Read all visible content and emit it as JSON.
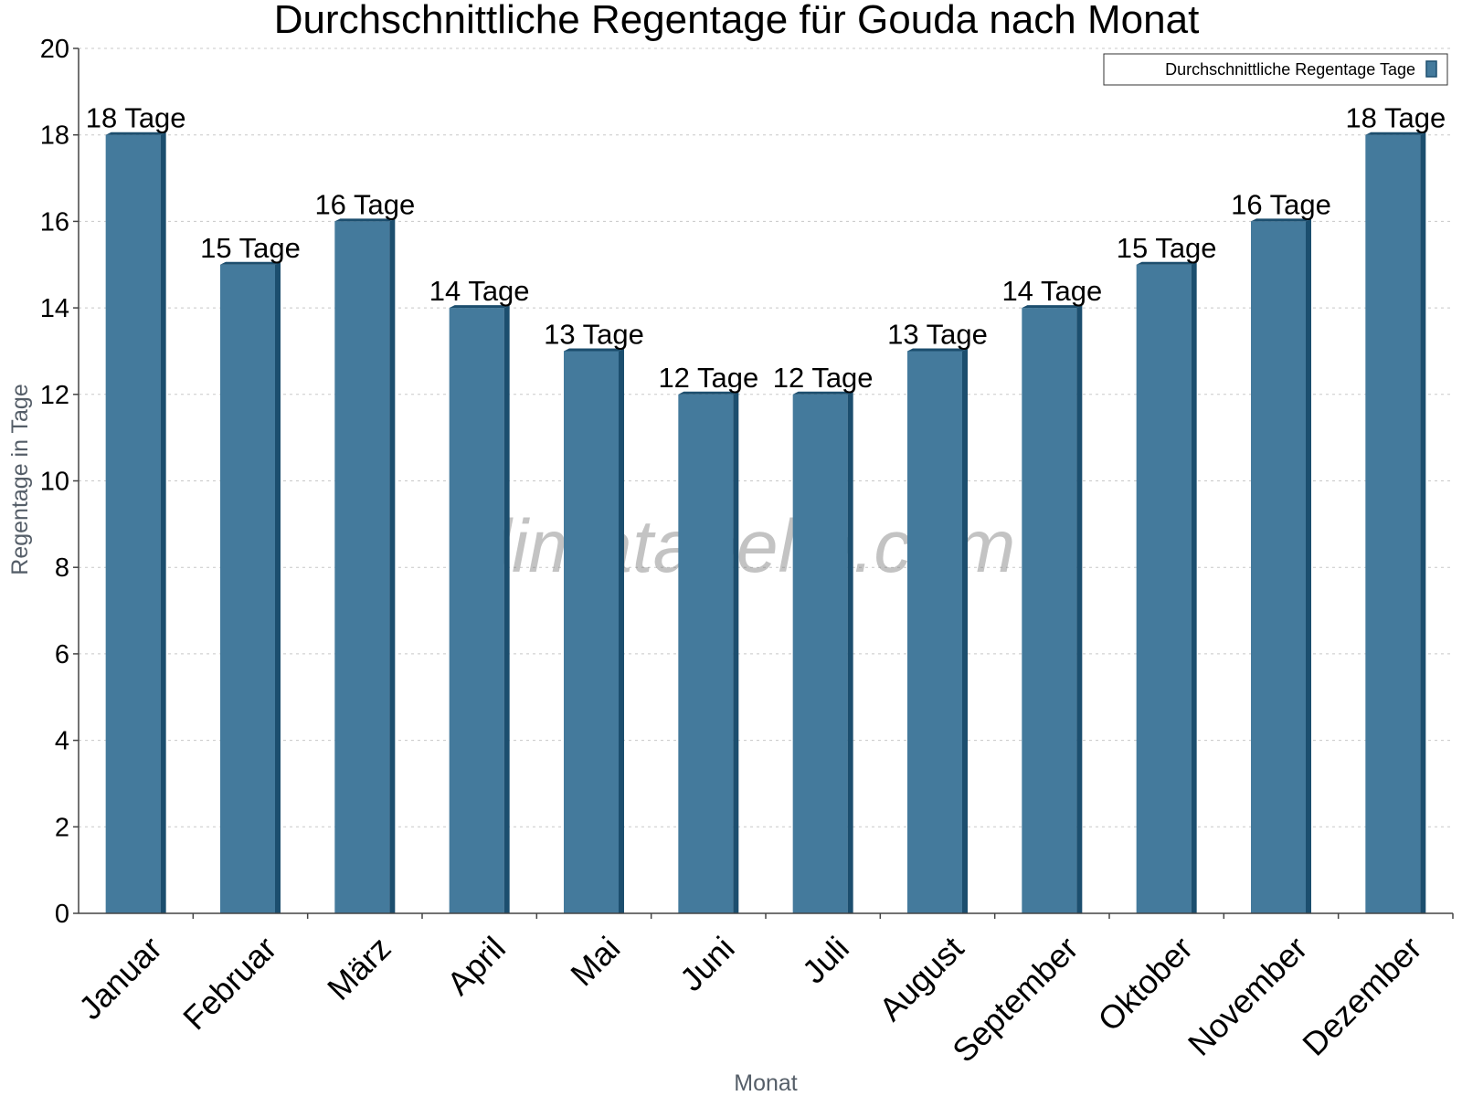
{
  "chart_data": {
    "type": "bar",
    "title": "Durchschnittliche Regentage für Gouda nach Monat",
    "xlabel": "Monat",
    "ylabel": "Regentage in Tage",
    "ylim": [
      0,
      20
    ],
    "yticks": [
      "0",
      "2",
      "4",
      "6",
      "8",
      "10",
      "12",
      "14",
      "16",
      "18",
      "20"
    ],
    "grid": true,
    "legend_position": "top-right",
    "categories": [
      "Januar",
      "Februar",
      "März",
      "April",
      "Mai",
      "Juni",
      "Juli",
      "August",
      "September",
      "Oktober",
      "November",
      "Dezember"
    ],
    "series": [
      {
        "name": "Durchschnittliche Regentage Tage",
        "values": [
          18,
          15,
          16,
          14,
          13,
          12,
          12,
          13,
          14,
          15,
          16,
          18
        ],
        "labels": [
          "18 Tage",
          "15 Tage",
          "16 Tage",
          "14 Tage",
          "13 Tage",
          "12 Tage",
          "12 Tage",
          "13 Tage",
          "14 Tage",
          "15 Tage",
          "16 Tage",
          "18 Tage"
        ],
        "color": "#447a9c",
        "side_color": "#1c4e6e"
      }
    ]
  },
  "watermark": "klimatabelle.com"
}
